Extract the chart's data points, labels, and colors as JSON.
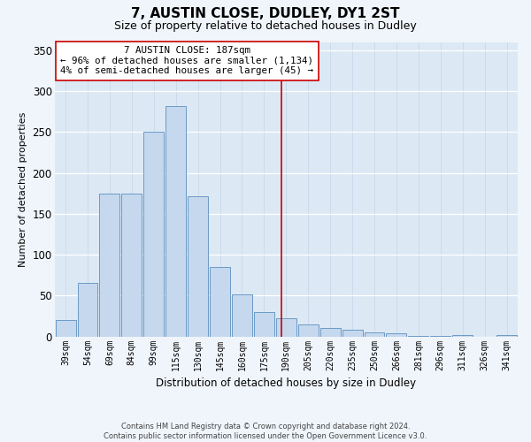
{
  "title": "7, AUSTIN CLOSE, DUDLEY, DY1 2ST",
  "subtitle": "Size of property relative to detached houses in Dudley",
  "xlabel": "Distribution of detached houses by size in Dudley",
  "ylabel": "Number of detached properties",
  "footer_line1": "Contains HM Land Registry data © Crown copyright and database right 2024.",
  "footer_line2": "Contains public sector information licensed under the Open Government Licence v3.0.",
  "categories": [
    "39sqm",
    "54sqm",
    "69sqm",
    "84sqm",
    "99sqm",
    "115sqm",
    "130sqm",
    "145sqm",
    "160sqm",
    "175sqm",
    "190sqm",
    "205sqm",
    "220sqm",
    "235sqm",
    "250sqm",
    "266sqm",
    "281sqm",
    "296sqm",
    "311sqm",
    "326sqm",
    "341sqm"
  ],
  "bar_heights": [
    20,
    65,
    175,
    175,
    250,
    282,
    171,
    85,
    52,
    30,
    22,
    15,
    10,
    8,
    5,
    4,
    1,
    1,
    2,
    0,
    2
  ],
  "bar_color": "#c5d8ed",
  "bar_edge_color": "#5b8fbf",
  "vline_color": "#cc0000",
  "annotation_text": "7 AUSTIN CLOSE: 187sqm\n← 96% of detached houses are smaller (1,134)\n4% of semi-detached houses are larger (45) →",
  "ylim": [
    0,
    360
  ],
  "yticks": [
    0,
    50,
    100,
    150,
    200,
    250,
    300,
    350
  ],
  "plot_bg_color": "#dce9f5",
  "fig_bg_color": "#f0f5fb",
  "grid_color": "#c8d8e8",
  "title_fontsize": 11,
  "subtitle_fontsize": 9,
  "tick_fontsize": 7,
  "ylabel_fontsize": 8,
  "xlabel_fontsize": 8.5,
  "annotation_fontsize": 7.8
}
